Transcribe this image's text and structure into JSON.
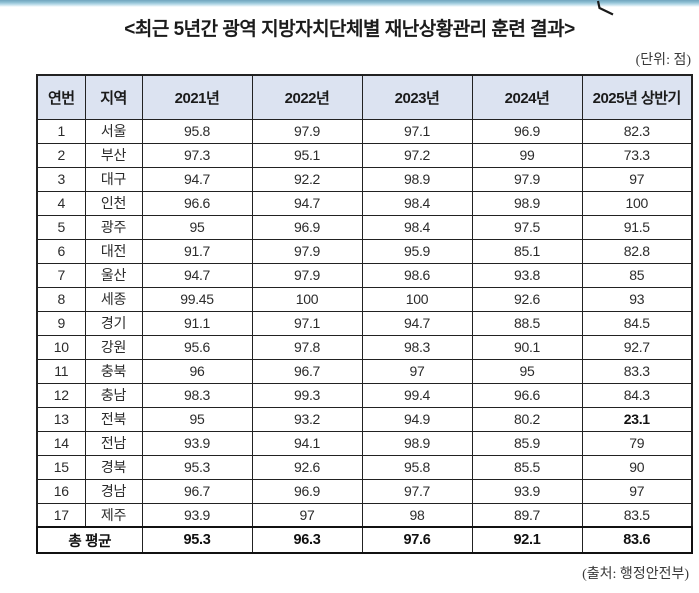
{
  "page": {
    "title": "<최근 5년간 광역 지방자치단체별 재난상황관리 훈련 결과>",
    "unit_note": "(단위: 점)",
    "source_note": "(출처: 행정안전부)"
  },
  "table": {
    "columns": [
      "연번",
      "지역",
      "2021년",
      "2022년",
      "2023년",
      "2024년",
      "2025년 상반기"
    ],
    "rows": [
      {
        "no": "1",
        "region": "서울",
        "values": [
          "95.8",
          "97.9",
          "97.1",
          "96.9",
          "82.3"
        ]
      },
      {
        "no": "2",
        "region": "부산",
        "values": [
          "97.3",
          "95.1",
          "97.2",
          "99",
          "73.3"
        ]
      },
      {
        "no": "3",
        "region": "대구",
        "values": [
          "94.7",
          "92.2",
          "98.9",
          "97.9",
          "97"
        ]
      },
      {
        "no": "4",
        "region": "인천",
        "values": [
          "96.6",
          "94.7",
          "98.4",
          "98.9",
          "100"
        ]
      },
      {
        "no": "5",
        "region": "광주",
        "values": [
          "95",
          "96.9",
          "98.4",
          "97.5",
          "91.5"
        ]
      },
      {
        "no": "6",
        "region": "대전",
        "values": [
          "91.7",
          "97.9",
          "95.9",
          "85.1",
          "82.8"
        ]
      },
      {
        "no": "7",
        "region": "울산",
        "values": [
          "94.7",
          "97.9",
          "98.6",
          "93.8",
          "85"
        ]
      },
      {
        "no": "8",
        "region": "세종",
        "values": [
          "99.45",
          "100",
          "100",
          "92.6",
          "93"
        ]
      },
      {
        "no": "9",
        "region": "경기",
        "values": [
          "91.1",
          "97.1",
          "94.7",
          "88.5",
          "84.5"
        ]
      },
      {
        "no": "10",
        "region": "강원",
        "values": [
          "95.6",
          "97.8",
          "98.3",
          "90.1",
          "92.7"
        ]
      },
      {
        "no": "11",
        "region": "충북",
        "values": [
          "96",
          "96.7",
          "97",
          "95",
          "83.3"
        ]
      },
      {
        "no": "12",
        "region": "충남",
        "values": [
          "98.3",
          "99.3",
          "99.4",
          "96.6",
          "84.3"
        ]
      },
      {
        "no": "13",
        "region": "전북",
        "values": [
          "95",
          "93.2",
          "94.9",
          "80.2",
          "23.1"
        ],
        "bold_cols": [
          4
        ]
      },
      {
        "no": "14",
        "region": "전남",
        "values": [
          "93.9",
          "94.1",
          "98.9",
          "85.9",
          "79"
        ]
      },
      {
        "no": "15",
        "region": "경북",
        "values": [
          "95.3",
          "92.6",
          "95.8",
          "85.5",
          "90"
        ]
      },
      {
        "no": "16",
        "region": "경남",
        "values": [
          "96.7",
          "96.9",
          "97.7",
          "93.9",
          "97"
        ]
      },
      {
        "no": "17",
        "region": "제주",
        "values": [
          "93.9",
          "97",
          "98",
          "89.7",
          "83.5"
        ]
      }
    ],
    "total": {
      "label": "총 평균",
      "values": [
        "95.3",
        "96.3",
        "97.6",
        "92.1",
        "83.6"
      ]
    }
  },
  "colors": {
    "header_bg": "#dce3f1",
    "border": "#222222",
    "top_bar_teal": "#6fa5bd"
  }
}
